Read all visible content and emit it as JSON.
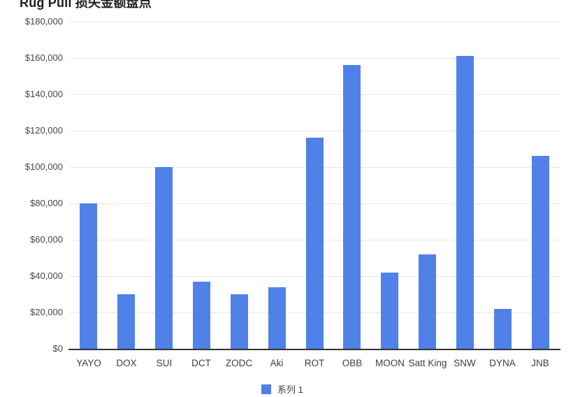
{
  "title": "Rug Pull 损失金额盘点",
  "legend": {
    "items": [
      {
        "label": "系列 1",
        "color": "#4f81e9"
      }
    ]
  },
  "colors": {
    "bar": "#4f81e9",
    "gridline": "#e7e7e7",
    "axis_baseline": "#333333",
    "axis_label": "#474747",
    "title_text": "#1f1f1f",
    "background": "#ffffff"
  },
  "chart_data": {
    "type": "bar",
    "title": "Rug Pull 损失金额盘点",
    "categories": [
      "YAYO",
      "DOX",
      "SUI",
      "DCT",
      "ZODC",
      "Aki",
      "ROT",
      "OBB",
      "MOON",
      "Satt King",
      "SNW",
      "DYNA",
      "JNB"
    ],
    "series": [
      {
        "name": "系列 1",
        "values": [
          80000,
          30000,
          100000,
          37000,
          30000,
          34000,
          116000,
          156000,
          42000,
          52000,
          161000,
          22000,
          106000
        ]
      }
    ],
    "xlabel": "",
    "ylabel": "",
    "ylim": [
      0,
      180000
    ],
    "ytick_step": 20000,
    "ytick_labels": [
      "$0",
      "$20,000",
      "$40,000",
      "$60,000",
      "$80,000",
      "$100,000",
      "$120,000",
      "$140,000",
      "$160,000",
      "$180,000"
    ],
    "grid": true,
    "legend_position": "bottom-center",
    "bar_color": "#4f81e9"
  }
}
